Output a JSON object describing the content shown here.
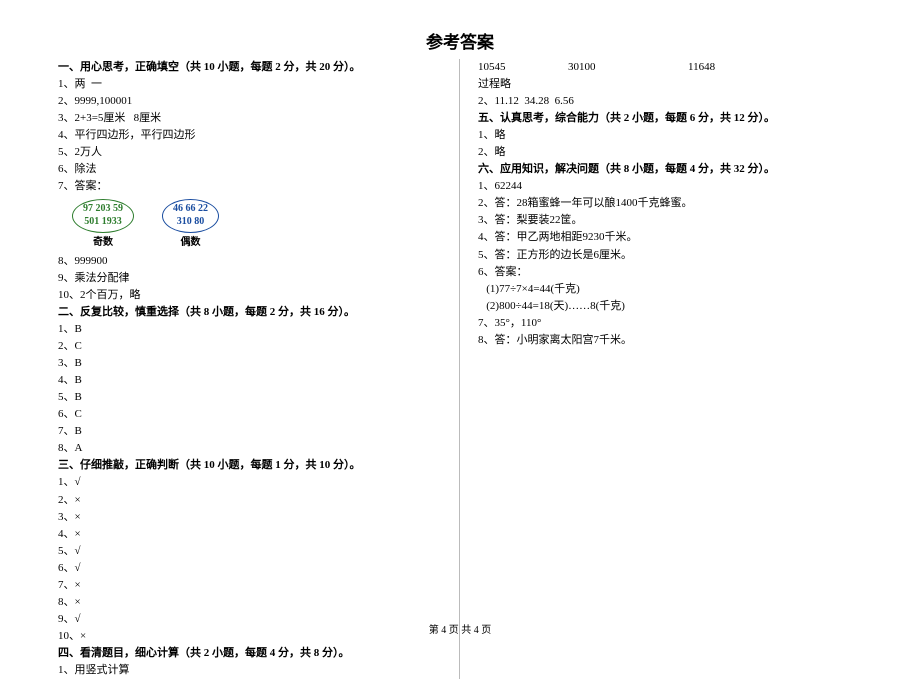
{
  "title": "参考答案",
  "footer": "第 4 页 共 4 页",
  "left": {
    "s1": {
      "head": "一、用心思考，正确填空（共 10 小题，每题 2 分，共 20 分）。",
      "a1": "1、两  一",
      "a2": "2、9999,100001",
      "a3": "3、2+3=5厘米   8厘米",
      "a4": "4、平行四边形，平行四边形",
      "a5": "5、2万人",
      "a6": "6、除法",
      "a7": "7、答案：",
      "oval_odd_l1": "97  203  59",
      "oval_odd_l2": "501  1933",
      "oval_odd_label": "奇数",
      "oval_even_l1": "46  66  22",
      "oval_even_l2": "310  80",
      "oval_even_label": "偶数",
      "a8": "8、999900",
      "a9": "9、乘法分配律",
      "a10": "10、2个百万，略"
    },
    "s2": {
      "head": "二、反复比较，慎重选择（共 8 小题，每题 2 分，共 16 分）。",
      "a1": "1、B",
      "a2": "2、C",
      "a3": "3、B",
      "a4": "4、B",
      "a5": "5、B",
      "a6": "6、C",
      "a7": "7、B",
      "a8": "8、A"
    },
    "s3": {
      "head": "三、仔细推敲，正确判断（共 10 小题，每题 1 分，共 10 分）。",
      "a1": "1、√",
      "a2": "2、×",
      "a3": "3、×",
      "a4": "4、×",
      "a5": "5、√",
      "a6": "6、√",
      "a7": "7、×",
      "a8": "8、×",
      "a9": "9、√",
      "a10": "10、×"
    },
    "s4": {
      "head": "四、看清题目，细心计算（共 2 小题，每题 4 分，共 8 分）。",
      "a1": "1、用竖式计算"
    }
  },
  "right": {
    "row1": {
      "c1": "10545",
      "c2": "30100",
      "c3": "11648"
    },
    "row1b": "过程略",
    "row2": "2、11.12  34.28  6.56",
    "s5": {
      "head": "五、认真思考，综合能力（共 2 小题，每题 6 分，共 12 分）。",
      "a1": "1、略",
      "a2": "2、略"
    },
    "s6": {
      "head": "六、应用知识，解决问题（共 8 小题，每题 4 分，共 32 分）。",
      "a1": "1、62244",
      "a2": "2、答：28箱蜜蜂一年可以酿1400千克蜂蜜。",
      "a3": "3、答：梨要装22筐。",
      "a4": "4、答：甲乙两地相距9230千米。",
      "a5": "5、答：正方形的边长是6厘米。",
      "a6": "6、答案：",
      "a6a": "   (1)77÷7×4=44(千克)",
      "a6b": "   (2)800÷44=18(天)……8(千克)",
      "a7": "7、35°，110°",
      "a8": "8、答：小明家离太阳宫7千米。"
    }
  }
}
